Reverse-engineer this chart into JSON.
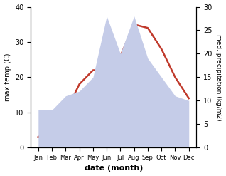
{
  "months": [
    "Jan",
    "Feb",
    "Mar",
    "Apr",
    "May",
    "Jun",
    "Jul",
    "Aug",
    "Sep",
    "Oct",
    "Nov",
    "Dec"
  ],
  "temp": [
    3,
    5,
    10,
    18,
    22,
    22,
    26,
    35,
    34,
    28,
    20,
    14
  ],
  "precip": [
    8,
    8,
    11,
    12,
    15,
    28,
    20,
    28,
    19,
    15,
    11,
    10
  ],
  "temp_color": "#c0392b",
  "precip_fill_color": "#c5cce8",
  "xlabel": "date (month)",
  "ylabel_left": "max temp (C)",
  "ylabel_right": "med. precipitation (kg/m2)",
  "ylim_left": [
    0,
    40
  ],
  "ylim_right": [
    0,
    30
  ],
  "bg_color": "#ffffff"
}
